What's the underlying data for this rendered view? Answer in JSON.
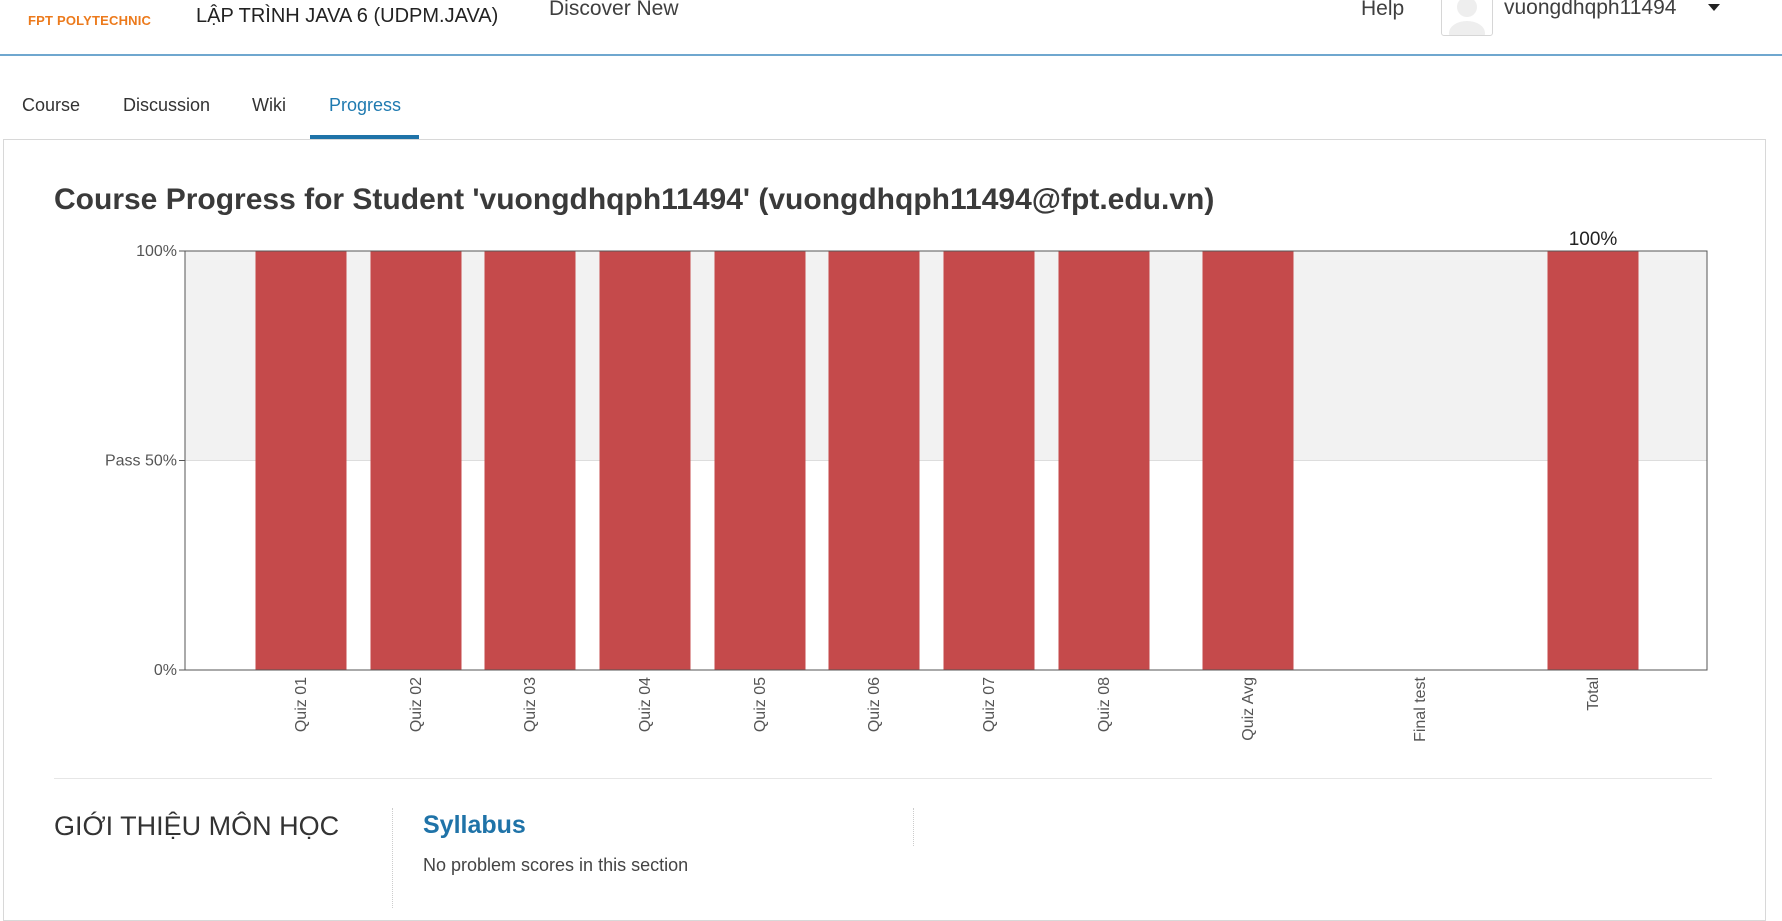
{
  "header": {
    "logo_text": "FPT POLYTECHNIC",
    "course_title": "LẬP TRÌNH JAVA 6 (UDPM.JAVA)",
    "discover": "Discover New",
    "help": "Help",
    "username": "vuongdhqph11494"
  },
  "tabs": [
    {
      "label": "Course"
    },
    {
      "label": "Discussion"
    },
    {
      "label": "Wiki"
    },
    {
      "label": "Progress"
    }
  ],
  "active_tab": "Progress",
  "page_title": "Course Progress for Student 'vuongdhqph11494' (vuongdhqph11494@fpt.edu.vn)",
  "chart_data": {
    "type": "bar",
    "categories": [
      "Quiz 01",
      "Quiz 02",
      "Quiz 03",
      "Quiz 04",
      "Quiz 05",
      "Quiz 06",
      "Quiz 07",
      "Quiz 08",
      "Quiz Avg",
      "Final test",
      "Total"
    ],
    "values": [
      100,
      100,
      100,
      100,
      100,
      100,
      100,
      100,
      100,
      0,
      100
    ],
    "y_ticks": [
      {
        "value": 100,
        "label": "100%"
      },
      {
        "value": 50,
        "label": "Pass 50%"
      },
      {
        "value": 0,
        "label": "0%"
      }
    ],
    "data_labels": [
      {
        "category": "Total",
        "label": "100%"
      }
    ],
    "ylim": [
      0,
      100
    ],
    "pass_threshold": 50,
    "bar_color": "#c54a4b",
    "above_pass_band_color": "#f2f2f2",
    "xlabel_rotation": "vertical"
  },
  "section": {
    "title": "GIỚI THIỆU MÔN HỌC",
    "link": "Syllabus",
    "note": "No problem scores in this section"
  }
}
